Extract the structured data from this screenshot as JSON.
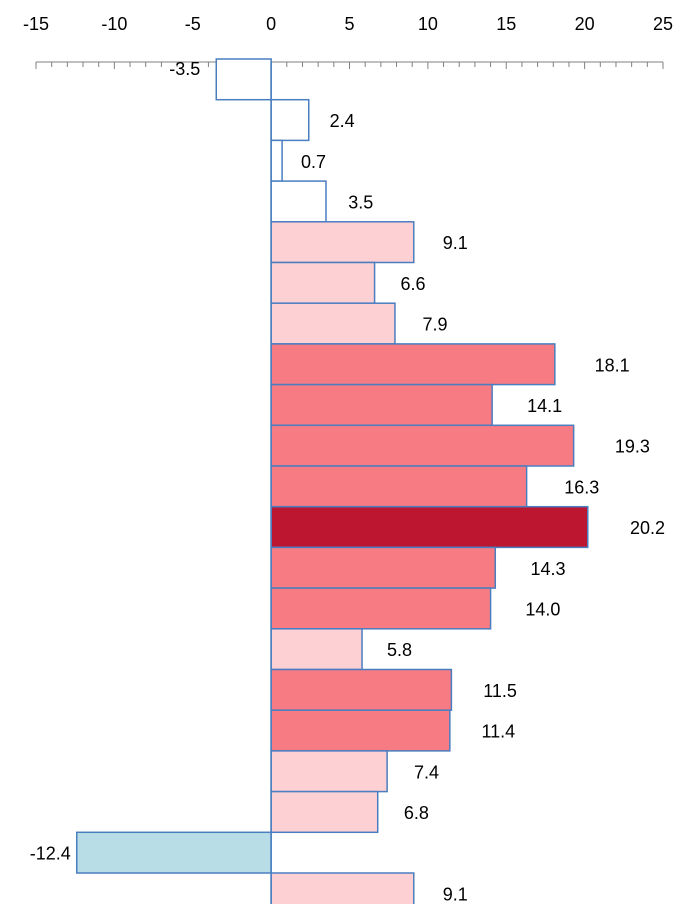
{
  "chart_data": {
    "type": "bar",
    "orientation": "horizontal",
    "title": "",
    "xlabel": "",
    "ylabel": "",
    "xlim": [
      -15,
      25
    ],
    "x_ticks": [
      -15,
      -10,
      -5,
      0,
      5,
      10,
      15,
      20,
      25
    ],
    "x_tick_labels": [
      "-15",
      "-10",
      "-5",
      "0",
      "5",
      "10",
      "15",
      "20",
      "25"
    ],
    "x_axis_position": "top",
    "grid": false,
    "legend": "none",
    "values": [
      -3.5,
      2.4,
      0.7,
      3.5,
      9.1,
      6.6,
      7.9,
      18.1,
      14.1,
      19.3,
      16.3,
      20.2,
      14.3,
      14.0,
      5.8,
      11.5,
      11.4,
      7.4,
      6.8,
      -12.4,
      9.1
    ],
    "value_labels": [
      "-3.5",
      "2.4",
      "0.7",
      "3.5",
      "9.1",
      "6.6",
      "7.9",
      "18.1",
      "14.1",
      "19.3",
      "16.3",
      "20.2",
      "14.3",
      "14.0",
      "5.8",
      "11.5",
      "11.4",
      "7.4",
      "6.8",
      "-12.4",
      "9.1"
    ],
    "bar_colors": [
      "#ffffff",
      "#ffffff",
      "#ffffff",
      "#ffffff",
      "#fdd0d4",
      "#fdd0d4",
      "#fdd0d4",
      "#f77b82",
      "#f77b82",
      "#f77b82",
      "#f77b82",
      "#bc1630",
      "#f77b82",
      "#f77b82",
      "#fdd0d4",
      "#f77b82",
      "#f77b82",
      "#fdd0d4",
      "#fdd0d4",
      "#b8dde6",
      "#fdd0d4"
    ],
    "bar_border_color": "#4a7ec0",
    "axis_color": "#808080"
  }
}
